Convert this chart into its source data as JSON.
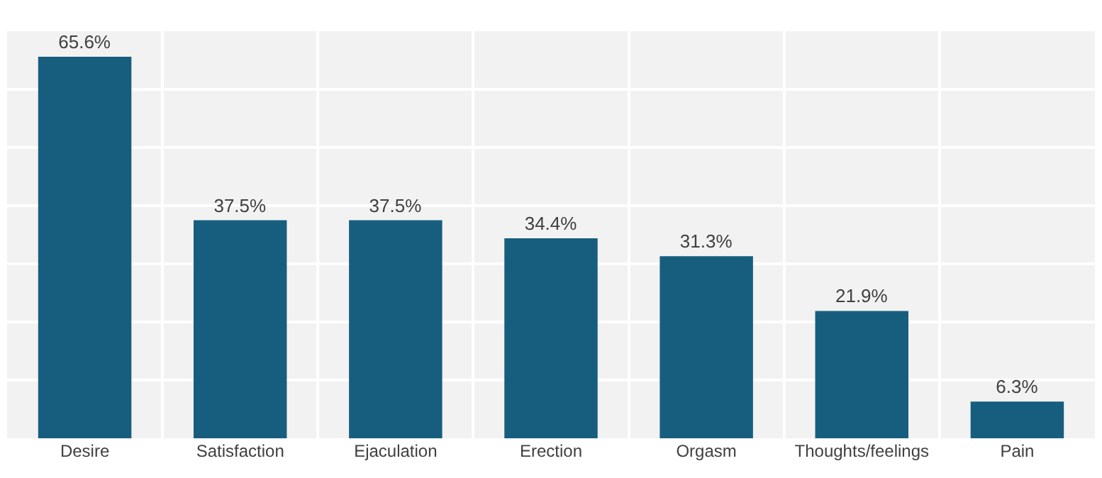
{
  "chart_data": {
    "type": "bar",
    "categories": [
      "Desire",
      "Satisfaction",
      "Ejaculation",
      "Erection",
      "Orgasm",
      "Thoughts/feelings",
      "Pain"
    ],
    "values": [
      65.6,
      37.5,
      37.5,
      34.4,
      31.3,
      21.9,
      6.3
    ],
    "value_labels": [
      "65.6%",
      "37.5%",
      "37.5%",
      "34.4%",
      "31.3%",
      "21.9%",
      "6.3%"
    ],
    "color": "#175e7e",
    "ylim": [
      0,
      70
    ],
    "yticks": [
      {
        "value": 0,
        "label": null
      },
      {
        "value": 10,
        "label": null
      },
      {
        "value": 20,
        "label": null
      },
      {
        "value": 30,
        "label": null
      },
      {
        "value": 40,
        "label": null
      },
      {
        "value": 50,
        "label": null
      },
      {
        "value": 60,
        "label": null
      },
      {
        "value": 70,
        "label": null
      }
    ],
    "grid": true,
    "tick_labels": "x"
  }
}
